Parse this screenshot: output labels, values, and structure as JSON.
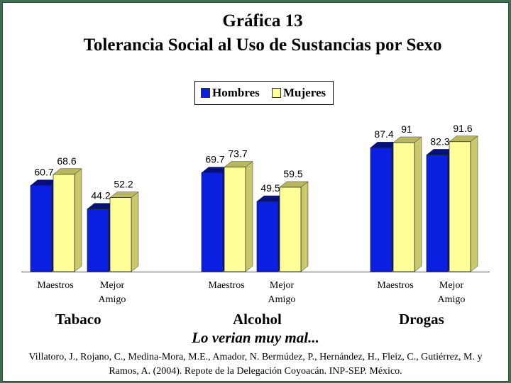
{
  "title": "Gráfica 13",
  "subtitle": "Tolerancia Social al Uso de Sustancias por Sexo",
  "note": "Lo verian muy mal...",
  "source": "Villatoro, J., Rojano, C., Medina-Mora, M.E., Amador, N. Bermúdez, P., Hernández, H., Fleiz, C., Gutiérrez, M. y Ramos, A. (2004). Repote de la Delegación Coyoacán. INP-SEP. México.",
  "colors": {
    "hombres": "#0b1fe0",
    "mujeres": "#ffff99",
    "background": "#3f6f55"
  },
  "chart_data": {
    "type": "bar",
    "groups": [
      {
        "name": "Tabaco",
        "categories": [
          "Maestros",
          "Mejor Amigo"
        ]
      },
      {
        "name": "Alcohol",
        "categories": [
          "Maestros",
          "Mejor Amigo"
        ]
      },
      {
        "name": "Drogas",
        "categories": [
          "Maestros",
          "Mejor Amigo"
        ]
      }
    ],
    "series": [
      {
        "name": "Hombres",
        "values": [
          60.7,
          44.2,
          69.7,
          49.5,
          87.4,
          82.3
        ]
      },
      {
        "name": "Mujeres",
        "values": [
          68.6,
          52.2,
          73.7,
          59.5,
          91,
          91.6
        ]
      }
    ],
    "legend": "top-center",
    "grid": false
  }
}
